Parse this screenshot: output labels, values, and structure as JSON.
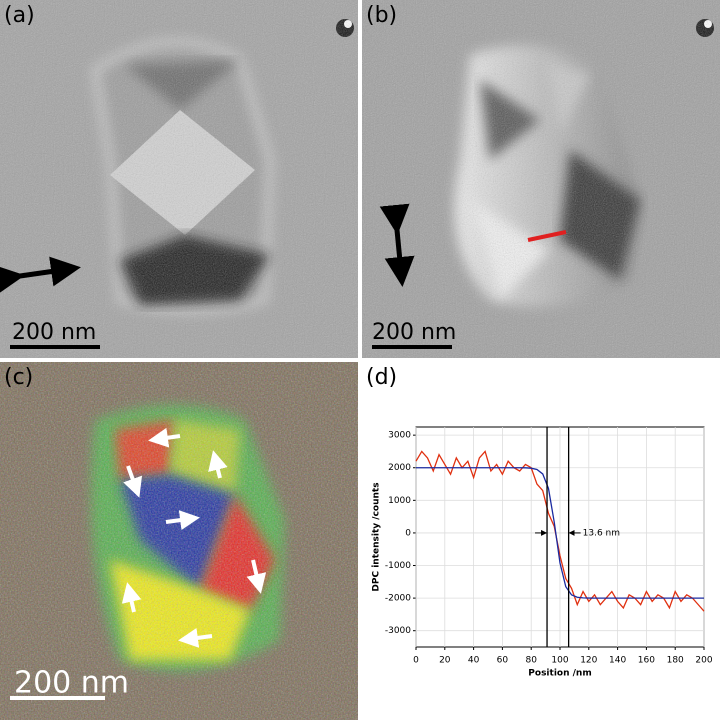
{
  "panels": {
    "a": {
      "label": "(a)",
      "scale_bar": "200 nm"
    },
    "b": {
      "label": "(b)",
      "scale_bar": "200 nm"
    },
    "c": {
      "label": "(c)",
      "scale_bar": "200 nm"
    },
    "d": {
      "label": "(d)"
    }
  },
  "chart_data": {
    "type": "line",
    "x_label": "Position /nm",
    "y_label": "DPC intensity /counts",
    "x": [
      0,
      4,
      8,
      12,
      16,
      20,
      24,
      28,
      32,
      36,
      40,
      44,
      48,
      52,
      56,
      60,
      64,
      68,
      72,
      76,
      80,
      84,
      88,
      92,
      96,
      100,
      104,
      108,
      112,
      116,
      120,
      124,
      128,
      132,
      136,
      140,
      144,
      148,
      152,
      156,
      160,
      164,
      168,
      172,
      176,
      180,
      184,
      188,
      192,
      196,
      200
    ],
    "series": [
      {
        "color": "#e03010",
        "values": [
          2200,
          2500,
          2300,
          1900,
          2400,
          2100,
          1800,
          2300,
          2000,
          2200,
          1700,
          2300,
          2500,
          1900,
          2100,
          1800,
          2200,
          2000,
          1900,
          2100,
          2000,
          1500,
          1300,
          600,
          200,
          -700,
          -1400,
          -1700,
          -2200,
          -1800,
          -2100,
          -1900,
          -2200,
          -2000,
          -1800,
          -2100,
          -2300,
          -1900,
          -2000,
          -2200,
          -1800,
          -2100,
          -1900,
          -2000,
          -2300,
          -1800,
          -2100,
          -1900,
          -2000,
          -2200,
          -2400
        ]
      },
      {
        "color": "#1a2aa0",
        "values": [
          2000,
          2000,
          2000,
          2000,
          2000,
          2000,
          2000,
          2000,
          2000,
          2000,
          2000,
          2000,
          2000,
          2000,
          2000,
          2000,
          2000,
          2000,
          2000,
          1998,
          1986,
          1948,
          1810,
          1364,
          330,
          -924,
          -1648,
          -1900,
          -1973,
          -1993,
          -1998,
          -2000,
          -2000,
          -2000,
          -2000,
          -2000,
          -2000,
          -2000,
          -2000,
          -2000,
          -2000,
          -2000,
          -2000,
          -2000,
          -2000,
          -2000,
          -2000,
          -2000,
          -2000,
          -2000,
          -2000
        ]
      }
    ],
    "xlim": [
      0,
      200
    ],
    "ylim": [
      -3500,
      3250
    ],
    "xticks": [
      0,
      20,
      40,
      60,
      80,
      100,
      120,
      140,
      160,
      180,
      200
    ],
    "yticks": [
      -3000,
      -2000,
      -1000,
      0,
      1000,
      2000,
      3000
    ],
    "grid": true,
    "markers": [
      91,
      106
    ],
    "annotation": "13.6 nm"
  }
}
